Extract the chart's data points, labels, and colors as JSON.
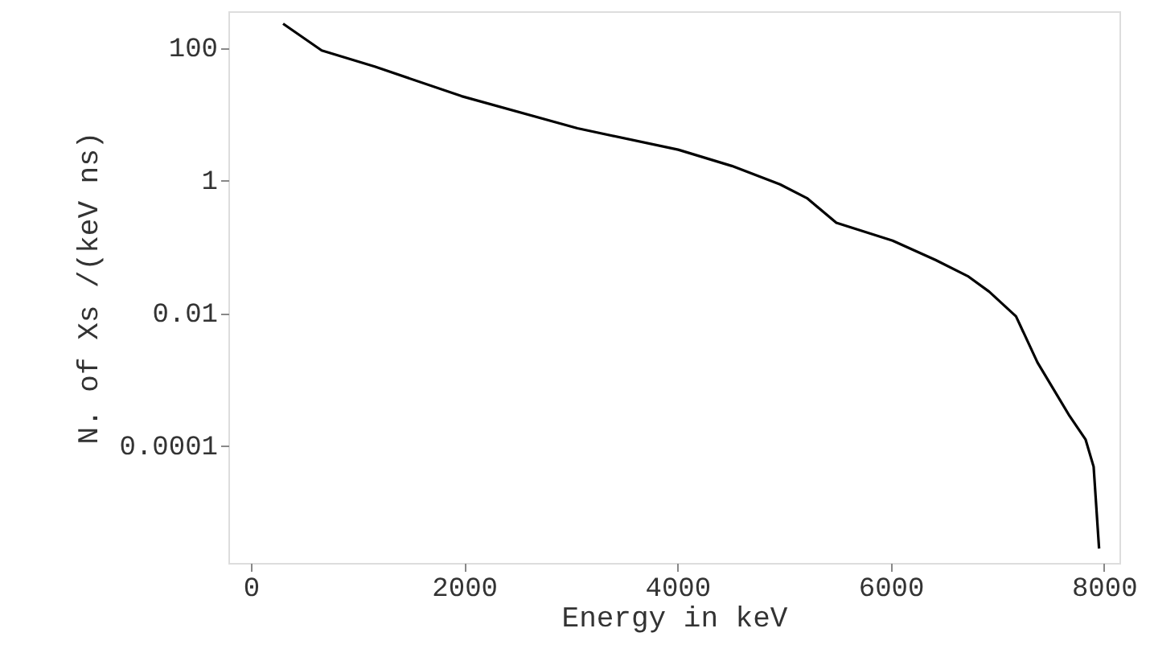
{
  "chart_data": {
    "type": "line",
    "xlabel": "Energy in keV",
    "ylabel": "N. of Xs /(keV ns)",
    "x": [
      302,
      664,
      1161,
      1976,
      3062,
      4007,
      4510,
      4962,
      5214,
      5490,
      6018,
      6420,
      6722,
      6923,
      7175,
      7376,
      7677,
      7828,
      7903,
      7954
    ],
    "series": [
      {
        "color": "#000000",
        "values": [
          230,
          91,
          52,
          18.6,
          6.1,
          2.9,
          1.65,
          0.87,
          0.54,
          0.23,
          0.123,
          0.063,
          0.036,
          0.021,
          0.0089,
          0.0018,
          0.00028,
          0.000123,
          4.8e-05,
          2.8e-06
        ]
      }
    ],
    "xlim": [
      -211,
      8145
    ],
    "xticks": [
      0,
      2000,
      4000,
      6000,
      8000
    ],
    "ylim": [
      1.7e-06,
      355
    ],
    "yticks": [
      100,
      1,
      0.01,
      0.0001
    ],
    "log": "y",
    "grid": false,
    "marker": "none",
    "line_style": "solid"
  }
}
